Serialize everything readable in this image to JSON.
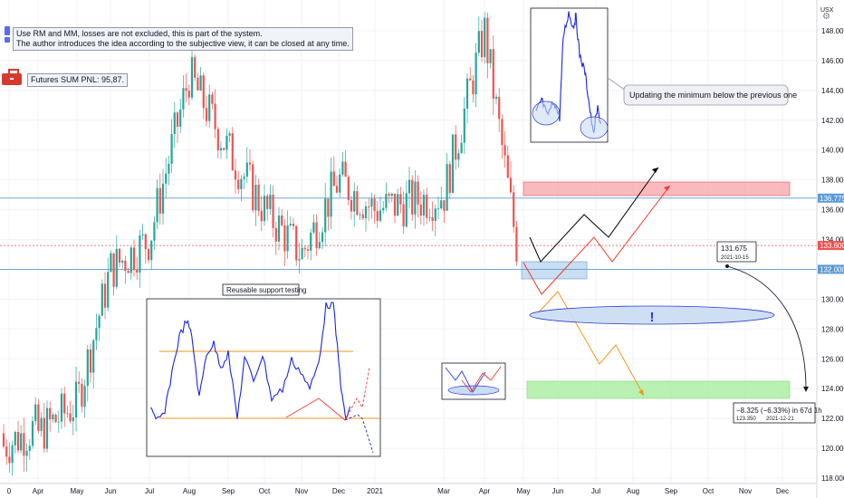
{
  "header": {
    "note_line1": "Use RM and MM, losses are not excluded, this is part of the system.",
    "note_line2": "The author introduces the idea according to the subjective view, it can be closed at any time.",
    "pnl": "Futures SUM PNL: 95,87."
  },
  "annotations": {
    "support": "Reusable support testing",
    "minimum": "Updating the minimum below the previous one",
    "exclamation": "!",
    "marker_price": "131.675",
    "marker_date": "2021-10-15",
    "measure_main": "−8.325 (−6.33%) in 67d 1h",
    "measure_price": "123.350",
    "measure_date": "2021-12-21"
  },
  "currency": "USX",
  "colors": {
    "up": "#26a69a",
    "down": "#ef5350",
    "support_line": "#5b9bd5",
    "red_zone": "#f5a3a8",
    "blue_zone": "#bcd6ee",
    "green_zone": "#a8eea0",
    "mini_line": "#1a27e0",
    "orange": "#f4961e"
  },
  "chart_data": {
    "type": "candlestick",
    "ylim": [
      118,
      150
    ],
    "y_ticks": [
      "118.000",
      "120.000",
      "122.000",
      "124.000",
      "126.000",
      "128.000",
      "130.000",
      "132.000",
      "134.000",
      "136.000",
      "138.000",
      "140.000",
      "142.000",
      "144.000",
      "146.000",
      "148.000"
    ],
    "x_ticks": [
      "0",
      "Apr",
      "May",
      "Jun",
      "Jul",
      "Aug",
      "Sep",
      "Oct",
      "Nov",
      "Dec",
      "2021",
      "Mar",
      "Apr",
      "May",
      "Jun",
      "Jul",
      "Aug",
      "Sep",
      "Oct",
      "Nov",
      "Dec"
    ],
    "levels": [
      {
        "value": 136.775,
        "label": "136.775",
        "color": "#5b9bd5"
      },
      {
        "value": 133.6,
        "label": "133.600",
        "color": "#ef5350"
      },
      {
        "value": 132.0,
        "label": "132.000",
        "color": "#5b9bd5"
      }
    ],
    "path": [
      {
        "date": "Apr",
        "value": 121
      },
      {
        "date": "May",
        "value": 123
      },
      {
        "date": "Jun",
        "value": 132
      },
      {
        "date": "Jul",
        "value": 134
      },
      {
        "date": "Aug",
        "value": 145
      },
      {
        "date": "Sep",
        "value": 140
      },
      {
        "date": "Oct",
        "value": 136
      },
      {
        "date": "Nov",
        "value": 133
      },
      {
        "date": "Dec",
        "value": 138
      },
      {
        "date": "2021",
        "value": 136
      },
      {
        "date": "Mar",
        "value": 137
      },
      {
        "date": "Apr",
        "value": 148
      },
      {
        "date": "May",
        "value": 133
      }
    ]
  }
}
